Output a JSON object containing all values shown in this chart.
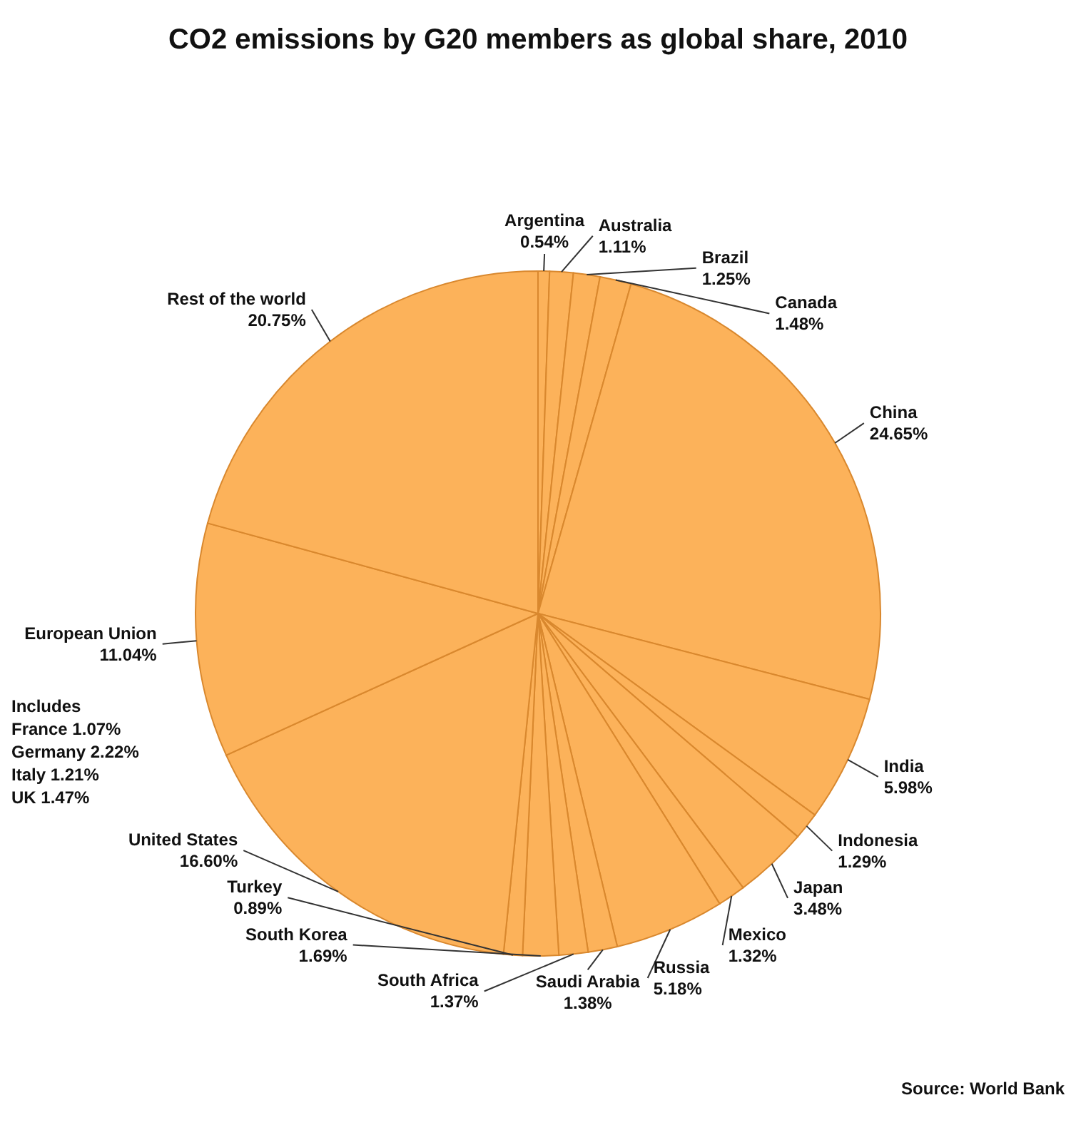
{
  "chart_data": {
    "type": "pie",
    "title": "CO2 emissions by G20 members as global share, 2010",
    "categories": [
      "Argentina",
      "Australia",
      "Brazil",
      "Canada",
      "China",
      "India",
      "Indonesia",
      "Japan",
      "Mexico",
      "Russia",
      "Saudi Arabia",
      "South Africa",
      "South Korea",
      "Turkey",
      "United States",
      "European Union",
      "Rest of the world"
    ],
    "values": [
      0.54,
      1.11,
      1.25,
      1.48,
      24.65,
      5.98,
      1.29,
      3.48,
      1.32,
      5.18,
      1.38,
      1.37,
      1.69,
      0.89,
      16.6,
      11.04,
      20.75
    ],
    "value_labels": [
      "0.54%",
      "1.11%",
      "1.25%",
      "1.48%",
      "24.65%",
      "5.98%",
      "1.29%",
      "3.48%",
      "1.32%",
      "5.18%",
      "1.38%",
      "1.37%",
      "1.69%",
      "0.89%",
      "16.60%",
      "11.04%",
      "20.75%"
    ],
    "colors": [
      "#fcb25a",
      "#fcb25a",
      "#fcb25a",
      "#fcb25a",
      "#fcb25a",
      "#fcb25a",
      "#fcb25a",
      "#fcb25a",
      "#fcb25a",
      "#fcb25a",
      "#fcb25a",
      "#fcb25a",
      "#fcb25a",
      "#fcb25a",
      "#fcb25a",
      "#fcb25a",
      "#fcb25a"
    ],
    "annotations": [
      "Includes\nFrance 1.07%\nGermany 2.22%\nItaly 1.21%\nUK 1.47%",
      "Source: World Bank"
    ],
    "legend": false
  }
}
